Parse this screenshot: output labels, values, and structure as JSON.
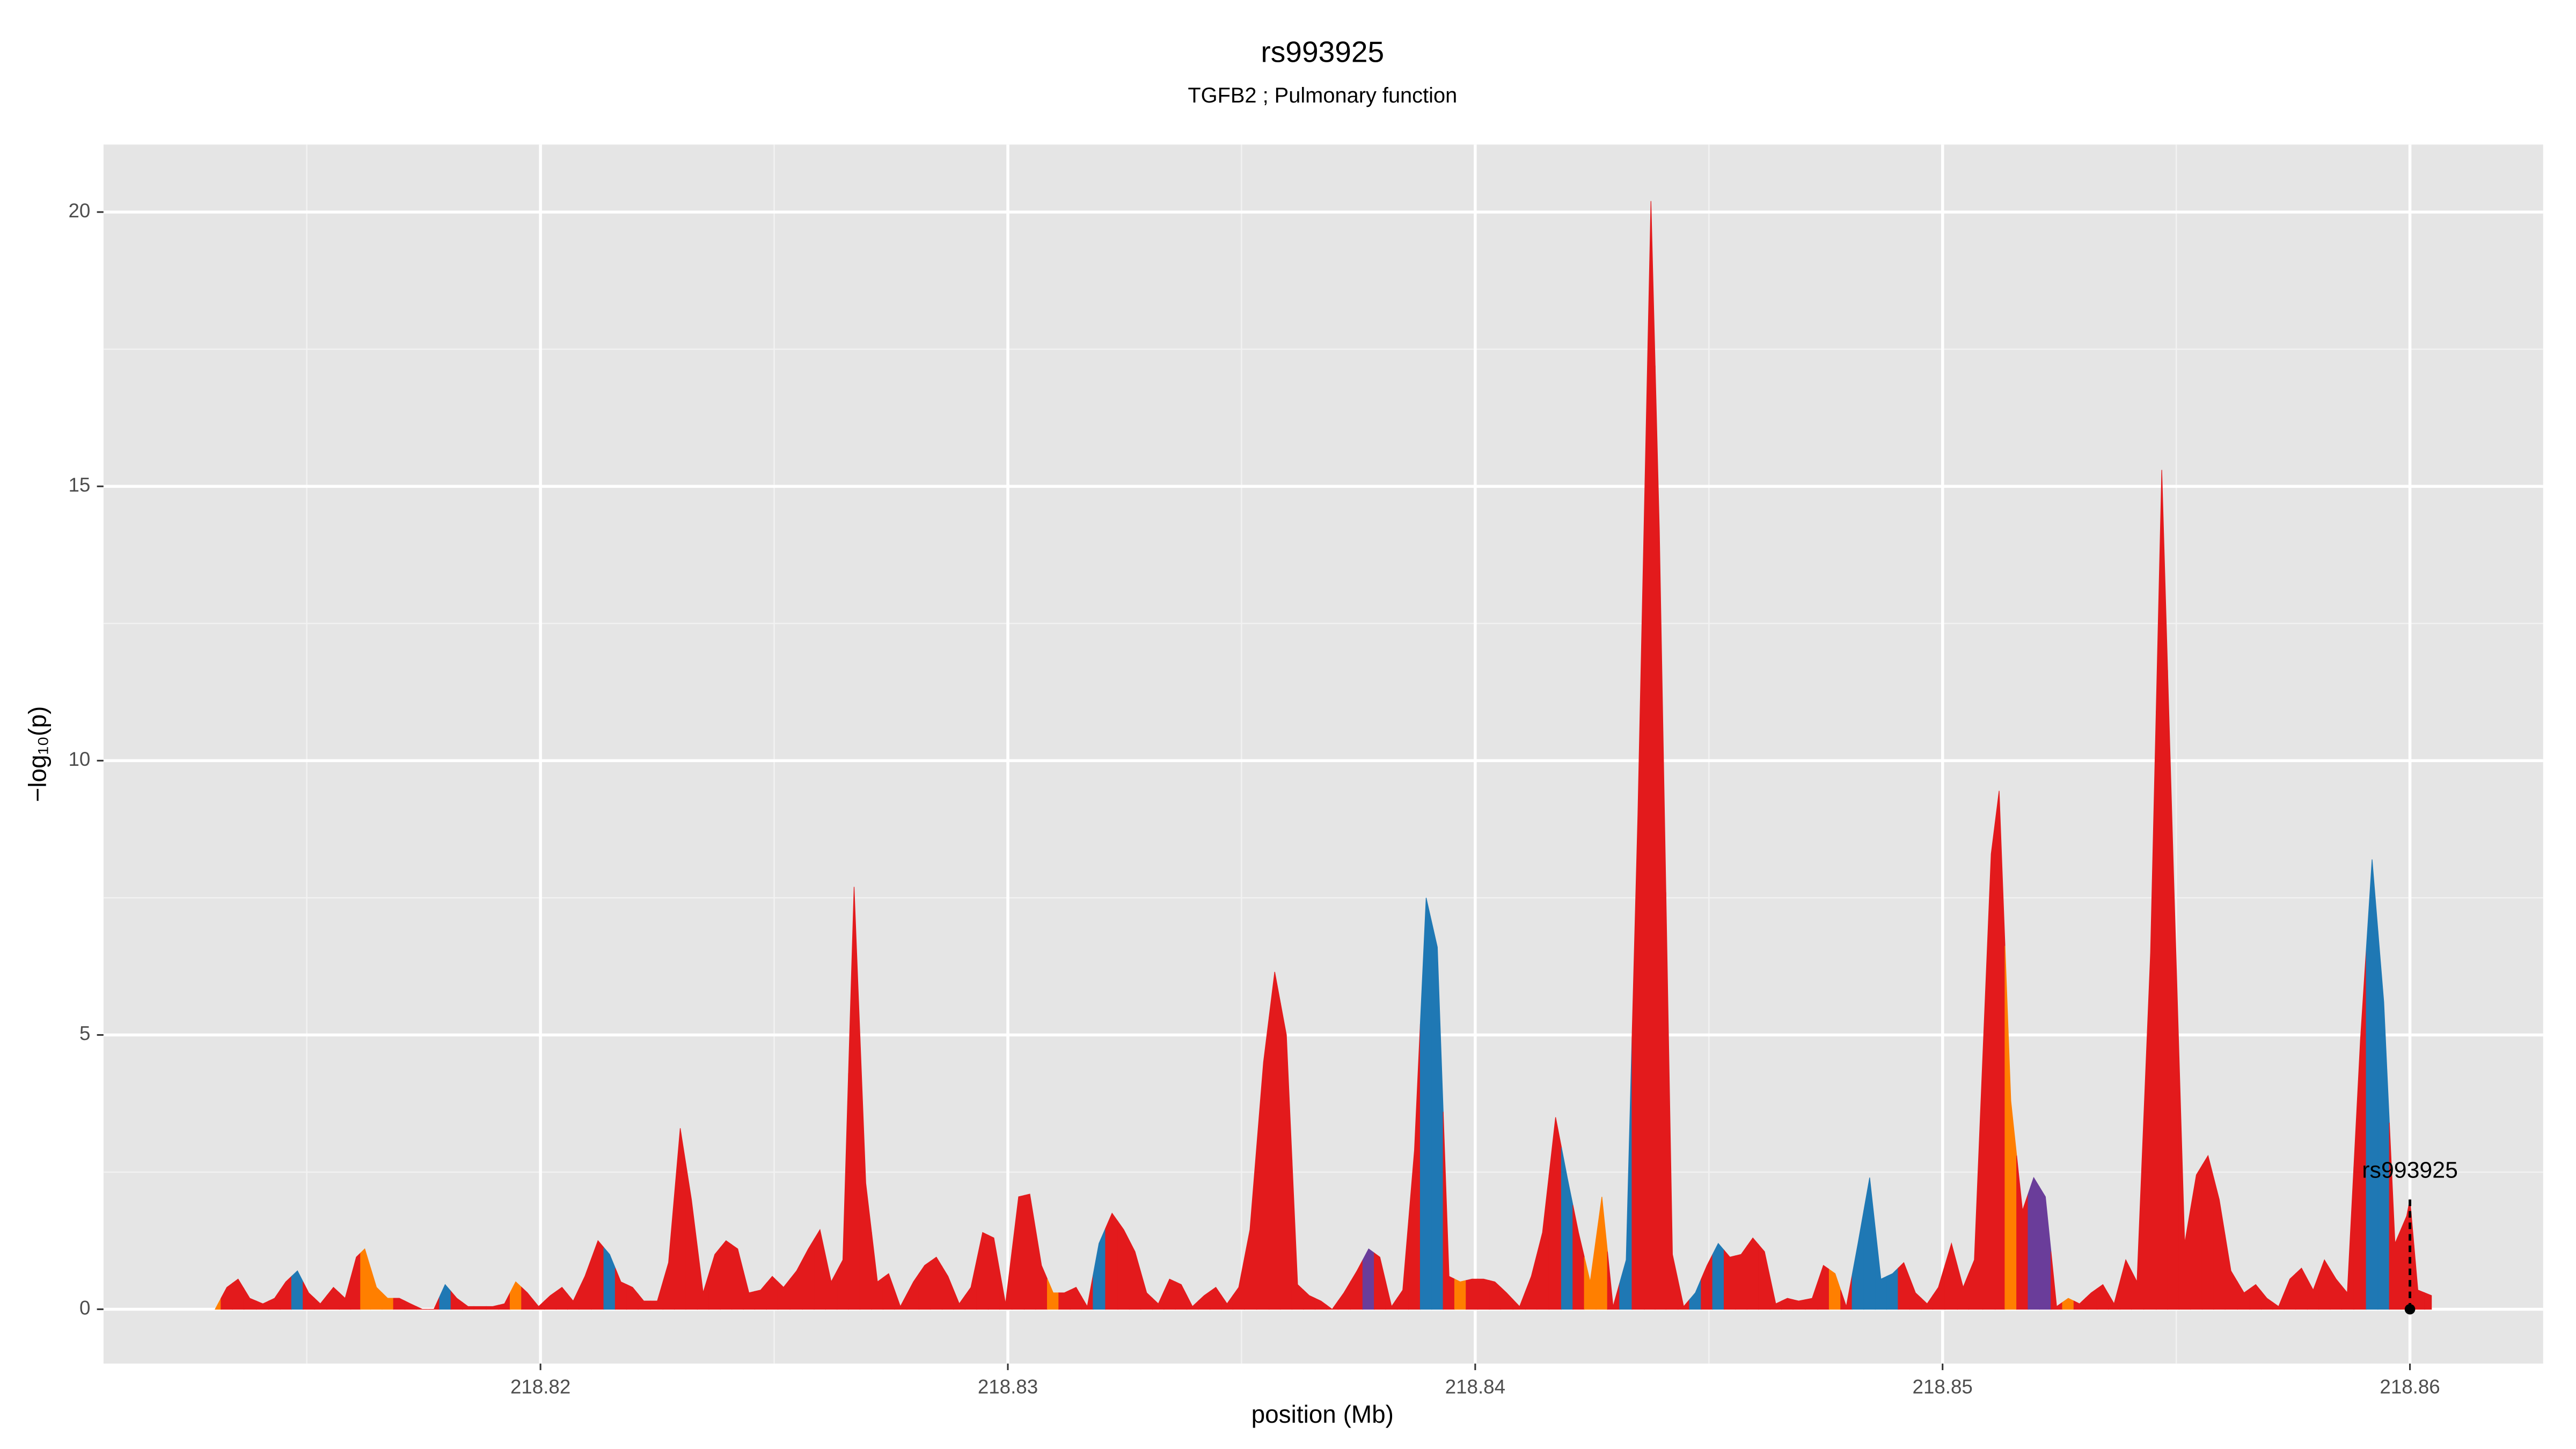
{
  "chart_data": {
    "type": "area",
    "title": "rs993925",
    "subtitle": "TGFB2 ; Pulmonary function",
    "x_label": "position (Mb)",
    "y_label": "−log₁₀(p)",
    "xlim": [
      218.81065,
      218.86285
    ],
    "ylim": [
      -0.99,
      21.23
    ],
    "xticks": [
      218.82,
      218.83,
      218.84,
      218.85,
      218.86
    ],
    "yticks": [
      0,
      5,
      10,
      15,
      20
    ],
    "grid": true,
    "x": [
      218.81304,
      218.81329,
      218.81353,
      218.81378,
      218.81406,
      218.81431,
      218.81455,
      218.8148,
      218.81504,
      218.81529,
      218.81557,
      218.81582,
      218.81606,
      218.81624,
      218.81649,
      218.81673,
      218.81698,
      218.81722,
      218.81747,
      218.81772,
      218.81796,
      218.81821,
      218.81845,
      218.8187,
      218.81898,
      218.81923,
      218.81947,
      218.81972,
      218.81996,
      218.82021,
      218.82046,
      218.8207,
      218.82095,
      218.82123,
      218.82148,
      218.82172,
      218.82197,
      218.82221,
      218.8225,
      218.82274,
      218.82299,
      218.82323,
      218.82348,
      218.82373,
      218.82397,
      218.82422,
      218.82446,
      218.82471,
      218.82496,
      218.8252,
      218.82548,
      218.82573,
      218.82598,
      218.82622,
      218.82647,
      218.82671,
      218.82696,
      218.82721,
      218.82745,
      218.8277,
      218.82798,
      218.82822,
      218.82847,
      218.82872,
      218.82896,
      218.82921,
      218.82946,
      218.8297,
      218.82995,
      218.83023,
      218.83047,
      218.83072,
      218.83097,
      218.83121,
      218.83146,
      218.8317,
      218.83195,
      218.83223,
      218.83248,
      218.83272,
      218.83297,
      218.83322,
      218.83346,
      218.83371,
      218.83395,
      218.8342,
      218.83445,
      218.83469,
      218.83494,
      218.83518,
      218.83547,
      218.83571,
      218.83596,
      218.8362,
      218.83645,
      218.8367,
      218.83694,
      218.83719,
      218.83747,
      218.83772,
      218.83796,
      218.83821,
      218.83845,
      218.8387,
      218.83895,
      218.83919,
      218.83944,
      218.83968,
      218.83993,
      218.84018,
      218.84042,
      218.84067,
      218.84095,
      218.8412,
      218.84144,
      218.84172,
      218.84197,
      218.84221,
      218.84246,
      218.84271,
      218.84295,
      218.84323,
      218.84348,
      218.84376,
      218.84394,
      218.84422,
      218.84446,
      218.84471,
      218.84496,
      218.8452,
      218.84545,
      218.84569,
      218.84594,
      218.84619,
      218.84643,
      218.84668,
      218.84692,
      218.84721,
      218.84745,
      218.8477,
      218.84794,
      218.84819,
      218.84844,
      218.84868,
      218.84893,
      218.84917,
      218.84942,
      218.84967,
      218.84991,
      218.85019,
      218.85044,
      218.85068,
      218.85104,
      218.85121,
      218.85146,
      218.85171,
      218.85195,
      218.8522,
      218.85244,
      218.85269,
      218.85293,
      218.85318,
      218.85343,
      218.85367,
      218.85392,
      218.85416,
      218.85445,
      218.85469,
      218.85494,
      218.85518,
      218.85543,
      218.85568,
      218.85592,
      218.85617,
      218.85645,
      218.8567,
      218.85694,
      218.85719,
      218.85743,
      218.85768,
      218.85793,
      218.85817,
      218.85842,
      218.85866,
      218.85894,
      218.85919,
      218.85944,
      218.85968,
      218.85993,
      218.86,
      218.86017,
      218.86046
    ],
    "values": [
      0.0,
      0.4,
      0.55,
      0.2,
      0.1,
      0.2,
      0.5,
      0.7,
      0.3,
      0.1,
      0.4,
      0.2,
      0.95,
      1.1,
      0.4,
      0.2,
      0.2,
      0.1,
      0.0,
      0.0,
      0.45,
      0.2,
      0.05,
      0.05,
      0.05,
      0.1,
      0.5,
      0.3,
      0.05,
      0.25,
      0.4,
      0.15,
      0.6,
      1.25,
      1.0,
      0.5,
      0.4,
      0.15,
      0.15,
      0.85,
      3.3,
      2.0,
      0.3,
      1.0,
      1.25,
      1.1,
      0.3,
      0.35,
      0.6,
      0.4,
      0.7,
      1.1,
      1.45,
      0.5,
      0.9,
      7.7,
      2.3,
      0.5,
      0.65,
      0.05,
      0.5,
      0.8,
      0.95,
      0.6,
      0.1,
      0.4,
      1.4,
      1.3,
      0.1,
      2.05,
      2.1,
      0.8,
      0.3,
      0.3,
      0.4,
      0.05,
      1.2,
      1.75,
      1.45,
      1.05,
      0.3,
      0.1,
      0.55,
      0.45,
      0.05,
      0.25,
      0.4,
      0.1,
      0.4,
      1.45,
      4.5,
      6.15,
      5.0,
      0.45,
      0.25,
      0.15,
      0.0,
      0.3,
      0.7,
      1.1,
      0.95,
      0.05,
      0.35,
      2.9,
      7.5,
      6.6,
      0.6,
      0.5,
      0.55,
      0.55,
      0.5,
      0.3,
      0.05,
      0.6,
      1.4,
      3.5,
      2.4,
      1.4,
      0.5,
      2.05,
      0.05,
      0.9,
      9.0,
      20.2,
      14.2,
      1.0,
      0.05,
      0.3,
      0.8,
      1.2,
      0.95,
      1.0,
      1.3,
      1.05,
      0.1,
      0.2,
      0.15,
      0.2,
      0.8,
      0.65,
      0.05,
      1.2,
      2.4,
      0.55,
      0.65,
      0.85,
      0.3,
      0.1,
      0.4,
      1.2,
      0.4,
      0.9,
      8.3,
      9.45,
      3.8,
      1.8,
      2.4,
      2.05,
      0.05,
      0.2,
      0.1,
      0.3,
      0.45,
      0.1,
      0.9,
      0.5,
      6.5,
      15.3,
      8.0,
      1.2,
      2.45,
      2.8,
      2.0,
      0.7,
      0.3,
      0.45,
      0.2,
      0.05,
      0.55,
      0.75,
      0.35,
      0.9,
      0.55,
      0.3,
      4.9,
      8.2,
      5.6,
      1.2,
      1.7,
      2.0,
      0.35,
      0.25
    ],
    "point_colors": [
      "#ff7f00",
      "#e31a1c",
      "#e31a1c",
      "#e31a1c",
      "#e31a1c",
      "#e31a1c",
      "#e31a1c",
      "#1f78b4",
      "#e31a1c",
      "#e31a1c",
      "#e31a1c",
      "#e31a1c",
      "#e31a1c",
      "#ff7f00",
      "#ff7f00",
      "#ff7f00",
      "#e31a1c",
      "#e31a1c",
      "#e31a1c",
      "#e31a1c",
      "#1f78b4",
      "#e31a1c",
      "#e31a1c",
      "#e31a1c",
      "#e31a1c",
      "#e31a1c",
      "#ff7f00",
      "#e31a1c",
      "#e31a1c",
      "#e31a1c",
      "#e31a1c",
      "#e31a1c",
      "#e31a1c",
      "#e31a1c",
      "#1f78b4",
      "#e31a1c",
      "#e31a1c",
      "#e31a1c",
      "#e31a1c",
      "#e31a1c",
      "#e31a1c",
      "#e31a1c",
      "#e31a1c",
      "#e31a1c",
      "#e31a1c",
      "#e31a1c",
      "#e31a1c",
      "#e31a1c",
      "#e31a1c",
      "#e31a1c",
      "#e31a1c",
      "#e31a1c",
      "#e31a1c",
      "#e31a1c",
      "#e31a1c",
      "#e31a1c",
      "#e31a1c",
      "#e31a1c",
      "#e31a1c",
      "#e31a1c",
      "#e31a1c",
      "#e31a1c",
      "#e31a1c",
      "#e31a1c",
      "#e31a1c",
      "#e31a1c",
      "#e31a1c",
      "#e31a1c",
      "#e31a1c",
      "#e31a1c",
      "#e31a1c",
      "#e31a1c",
      "#ff7f00",
      "#e31a1c",
      "#e31a1c",
      "#e31a1c",
      "#1f78b4",
      "#e31a1c",
      "#e31a1c",
      "#e31a1c",
      "#e31a1c",
      "#e31a1c",
      "#e31a1c",
      "#e31a1c",
      "#e31a1c",
      "#e31a1c",
      "#e31a1c",
      "#e31a1c",
      "#e31a1c",
      "#e31a1c",
      "#e31a1c",
      "#e31a1c",
      "#e31a1c",
      "#e31a1c",
      "#e31a1c",
      "#e31a1c",
      "#e31a1c",
      "#e31a1c",
      "#e31a1c",
      "#6a3d9a",
      "#e31a1c",
      "#e31a1c",
      "#e31a1c",
      "#e31a1c",
      "#1f78b4",
      "#1f78b4",
      "#e31a1c",
      "#ff7f00",
      "#e31a1c",
      "#e31a1c",
      "#e31a1c",
      "#e31a1c",
      "#e31a1c",
      "#e31a1c",
      "#e31a1c",
      "#e31a1c",
      "#1f78b4",
      "#e31a1c",
      "#ff7f00",
      "#ff7f00",
      "#e31a1c",
      "#1f78b4",
      "#e31a1c",
      "#e31a1c",
      "#e31a1c",
      "#e31a1c",
      "#e31a1c",
      "#1f78b4",
      "#e31a1c",
      "#1f78b4",
      "#e31a1c",
      "#e31a1c",
      "#e31a1c",
      "#e31a1c",
      "#e31a1c",
      "#e31a1c",
      "#e31a1c",
      "#e31a1c",
      "#e31a1c",
      "#ff7f00",
      "#e31a1c",
      "#1f78b4",
      "#1f78b4",
      "#1f78b4",
      "#1f78b4",
      "#e31a1c",
      "#e31a1c",
      "#e31a1c",
      "#e31a1c",
      "#e31a1c",
      "#e31a1c",
      "#e31a1c",
      "#e31a1c",
      "#e31a1c",
      "#ff7f00",
      "#e31a1c",
      "#6a3d9a",
      "#6a3d9a",
      "#e31a1c",
      "#ff7f00",
      "#e31a1c",
      "#e31a1c",
      "#e31a1c",
      "#e31a1c",
      "#e31a1c",
      "#e31a1c",
      "#e31a1c",
      "#e31a1c",
      "#e31a1c",
      "#e31a1c",
      "#e31a1c",
      "#e31a1c",
      "#e31a1c",
      "#e31a1c",
      "#e31a1c",
      "#e31a1c",
      "#e31a1c",
      "#e31a1c",
      "#e31a1c",
      "#e31a1c",
      "#e31a1c",
      "#e31a1c",
      "#e31a1c",
      "#e31a1c",
      "#e31a1c",
      "#1f78b4",
      "#1f78b4",
      "#e31a1c",
      "#e31a1c",
      "#e31a1c",
      "#e31a1c",
      "#e31a1c"
    ],
    "annotation": {
      "text": "rs993925",
      "x": 218.86,
      "y": 2.0
    }
  }
}
